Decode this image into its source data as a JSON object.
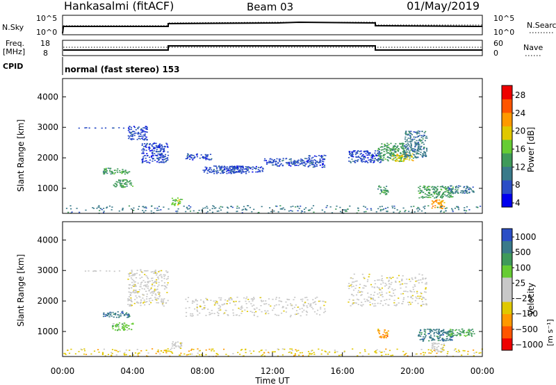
{
  "header": {
    "station": "Hankasalmi (fitACF)",
    "beam": "Beam 03",
    "date": "01/May/2019"
  },
  "summary_panels": {
    "nsky_label": "N.Sky",
    "nsky_ticks": [
      "10^5",
      "10^0"
    ],
    "nsearch_label": "N.Search",
    "nsearch_ticks": [
      "10^5",
      "10^0"
    ],
    "freq_label": "Freq.",
    "freq_unit": "[MHz]",
    "freq_ticks": [
      "18",
      "8"
    ],
    "nave_label": "Nave",
    "nave_ticks": [
      "60",
      "0"
    ],
    "cpid_label": "CPID",
    "cpid_text": "normal (fast stereo) 153"
  },
  "chart_data": [
    {
      "type": "heatmap",
      "panel": "power",
      "ylabel": "Slant Range [km]",
      "yticks": [
        "4000",
        "3000",
        "2000",
        "1000"
      ],
      "ylim": [
        180,
        4600
      ],
      "xlim": [
        0,
        24
      ],
      "colorbar_label": "Power [dB]",
      "colorbar_ticks": [
        "28",
        "24",
        "20",
        "16",
        "12",
        "8",
        "4"
      ],
      "colors": [
        "#0000ee",
        "#2b4ec6",
        "#3a7a8a",
        "#3f9a5a",
        "#66cc33",
        "#e0c800",
        "#ff9900",
        "#ff5500",
        "#ee0000"
      ],
      "regions": [
        {
          "t": [
            0.9,
            3.7
          ],
          "r": [
            2990,
            3010
          ],
          "level": 1
        },
        {
          "t": [
            3.7,
            4.8
          ],
          "r": [
            2600,
            3050
          ],
          "level": 1
        },
        {
          "t": [
            4.5,
            6.0
          ],
          "r": [
            1850,
            2500
          ],
          "level": 1
        },
        {
          "t": [
            2.3,
            3.8
          ],
          "r": [
            1480,
            1680
          ],
          "level": 3
        },
        {
          "t": [
            2.8,
            4.0
          ],
          "r": [
            1050,
            1300
          ],
          "level": 3
        },
        {
          "t": [
            6.2,
            6.8
          ],
          "r": [
            450,
            700
          ],
          "level": 4
        },
        {
          "t": [
            7.0,
            8.5
          ],
          "r": [
            1950,
            2150
          ],
          "level": 1
        },
        {
          "t": [
            8.0,
            10.5
          ],
          "r": [
            1500,
            1750
          ],
          "level": 1
        },
        {
          "t": [
            9.0,
            11.5
          ],
          "r": [
            1550,
            1750
          ],
          "level": 1
        },
        {
          "t": [
            11.5,
            14.0
          ],
          "r": [
            1750,
            2000
          ],
          "level": 1
        },
        {
          "t": [
            14.0,
            15.0
          ],
          "r": [
            1700,
            2100
          ],
          "level": 1
        },
        {
          "t": [
            16.3,
            18.2
          ],
          "r": [
            1850,
            2250
          ],
          "level": 1
        },
        {
          "t": [
            18.0,
            19.5
          ],
          "r": [
            1900,
            2500
          ],
          "level": 3
        },
        {
          "t": [
            18.8,
            20.0
          ],
          "r": [
            1900,
            2150
          ],
          "level": 5
        },
        {
          "t": [
            19.5,
            20.8
          ],
          "r": [
            2000,
            2900
          ],
          "level": 2
        },
        {
          "t": [
            18.0,
            18.6
          ],
          "r": [
            800,
            1100
          ],
          "level": 3
        },
        {
          "t": [
            20.3,
            22.3
          ],
          "r": [
            700,
            1100
          ],
          "level": 3
        },
        {
          "t": [
            21.0,
            21.8
          ],
          "r": [
            350,
            650
          ],
          "level": 6
        },
        {
          "t": [
            22.0,
            23.5
          ],
          "r": [
            850,
            1100
          ],
          "level": 2
        },
        {
          "t": [
            0.0,
            24.0
          ],
          "r": [
            200,
            450
          ],
          "level": 2
        }
      ]
    },
    {
      "type": "heatmap",
      "panel": "velocity",
      "ylabel": "Slant Range [km]",
      "yticks": [
        "4000",
        "3000",
        "2000",
        "1000"
      ],
      "ylim": [
        180,
        4600
      ],
      "xlim": [
        0,
        24
      ],
      "xticks": [
        "00:00",
        "04:00",
        "08:00",
        "12:00",
        "16:00",
        "20:00",
        "00:00"
      ],
      "xlabel": "Time UT",
      "colorbar_label": "Velocity",
      "colorbar_unit": "[m s⁻¹]",
      "colorbar_ticks": [
        "1000",
        "500",
        "100",
        "25",
        "−25",
        "−100",
        "−500",
        "−1000"
      ],
      "colors": [
        "#ee0000",
        "#ff5500",
        "#ff9900",
        "#e0c800",
        "#c8c8c8",
        "#c8c8c8",
        "#66cc33",
        "#3f9a5a",
        "#3a7a8a",
        "#2b4ec6"
      ],
      "regions": [
        {
          "t": [
            0.9,
            3.7
          ],
          "r": [
            2990,
            3010
          ],
          "level": 4
        },
        {
          "t": [
            3.7,
            6.0
          ],
          "r": [
            1850,
            3050
          ],
          "level": 4
        },
        {
          "t": [
            2.3,
            3.8
          ],
          "r": [
            1480,
            1680
          ],
          "level": 8
        },
        {
          "t": [
            2.8,
            4.0
          ],
          "r": [
            1050,
            1300
          ],
          "level": 6
        },
        {
          "t": [
            6.2,
            6.8
          ],
          "r": [
            450,
            700
          ],
          "level": 4
        },
        {
          "t": [
            7.0,
            15.0
          ],
          "r": [
            1500,
            2150
          ],
          "level": 4
        },
        {
          "t": [
            16.3,
            20.8
          ],
          "r": [
            1850,
            2900
          ],
          "level": 4
        },
        {
          "t": [
            18.0,
            18.6
          ],
          "r": [
            800,
            1100
          ],
          "level": 2
        },
        {
          "t": [
            20.3,
            22.3
          ],
          "r": [
            700,
            1100
          ],
          "level": 8
        },
        {
          "t": [
            21.0,
            21.8
          ],
          "r": [
            350,
            650
          ],
          "level": 4
        },
        {
          "t": [
            22.0,
            23.5
          ],
          "r": [
            850,
            1100
          ],
          "level": 7
        },
        {
          "t": [
            0.0,
            24.0
          ],
          "r": [
            200,
            450
          ],
          "level": 3
        }
      ]
    }
  ]
}
